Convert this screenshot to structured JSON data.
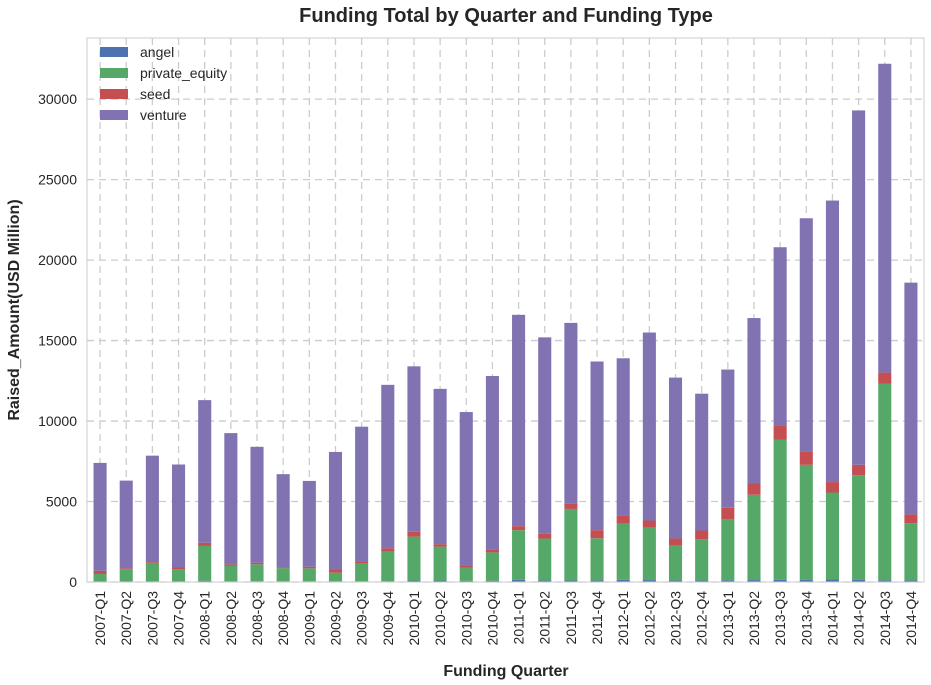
{
  "chart_data": {
    "type": "bar",
    "stacked": true,
    "title": "Funding Total by Quarter and Funding Type",
    "xlabel": "Funding Quarter",
    "ylabel": "Raised_Amount(USD Million)",
    "ylim": [
      0,
      33800
    ],
    "yticks": [
      0,
      5000,
      10000,
      15000,
      20000,
      25000,
      30000
    ],
    "grid": true,
    "legend_position": "top-left",
    "categories": [
      "2007-Q1",
      "2007-Q2",
      "2007-Q3",
      "2007-Q4",
      "2008-Q1",
      "2008-Q2",
      "2008-Q3",
      "2008-Q4",
      "2009-Q1",
      "2009-Q2",
      "2009-Q3",
      "2009-Q4",
      "2010-Q1",
      "2010-Q2",
      "2010-Q3",
      "2010-Q4",
      "2011-Q1",
      "2011-Q2",
      "2011-Q3",
      "2011-Q4",
      "2012-Q1",
      "2012-Q2",
      "2012-Q3",
      "2012-Q4",
      "2013-Q1",
      "2013-Q2",
      "2013-Q3",
      "2013-Q4",
      "2014-Q1",
      "2014-Q2",
      "2014-Q3",
      "2014-Q4"
    ],
    "series": [
      {
        "name": "angel",
        "color": "#4c72b0",
        "values": [
          30,
          20,
          30,
          30,
          80,
          50,
          40,
          40,
          40,
          50,
          40,
          50,
          90,
          90,
          70,
          80,
          140,
          100,
          90,
          100,
          140,
          120,
          100,
          100,
          110,
          120,
          130,
          130,
          160,
          130,
          110,
          100
        ]
      },
      {
        "name": "private_equity",
        "color": "#55a868",
        "values": [
          470,
          780,
          1170,
          770,
          2160,
          950,
          1060,
          820,
          810,
          530,
          1140,
          1850,
          2730,
          2110,
          810,
          1760,
          3080,
          2600,
          4450,
          2620,
          3500,
          3250,
          2150,
          2550,
          3800,
          5300,
          8700,
          7150,
          5400,
          6500,
          12200,
          3550
        ]
      },
      {
        "name": "seed",
        "color": "#c44e52",
        "values": [
          200,
          50,
          100,
          100,
          200,
          100,
          100,
          60,
          100,
          200,
          100,
          200,
          300,
          150,
          150,
          200,
          250,
          300,
          350,
          500,
          500,
          450,
          450,
          550,
          700,
          700,
          900,
          800,
          650,
          650,
          700,
          550
        ]
      },
      {
        "name": "venture",
        "color": "#8172b2",
        "values": [
          6700,
          5450,
          6550,
          6400,
          8860,
          8150,
          7200,
          5780,
          5330,
          7300,
          8370,
          10150,
          10280,
          9650,
          9530,
          10760,
          13130,
          12200,
          11210,
          10480,
          9760,
          11680,
          10000,
          8500,
          8590,
          10280,
          11070,
          14520,
          17490,
          22020,
          19190,
          14400
        ]
      }
    ]
  }
}
